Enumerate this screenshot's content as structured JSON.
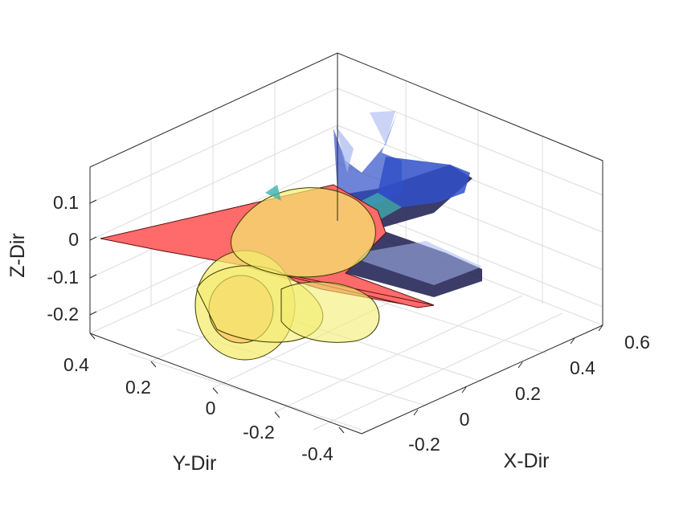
{
  "chart_data": {
    "type": "3d-surface",
    "title": "",
    "xlabel": "X-Dir",
    "ylabel": "Y-Dir",
    "zlabel": "Z-Dir",
    "xticks": [
      "-0.2",
      "0",
      "0.2",
      "0.4",
      "0.6"
    ],
    "yticks": [
      "0.4",
      "0.2",
      "0",
      "-0.2",
      "-0.4"
    ],
    "zticks": [
      "0.1",
      "0",
      "-0.1",
      "-0.2"
    ],
    "grid": true,
    "box": true,
    "colors": {
      "wing_edge": "#ff6a6a",
      "wake_dark": "#1a1a4e",
      "wake_blue": "#3050c8",
      "wake_light": "#a8b8f0",
      "rotor": "#f4ec70",
      "rotor_edge": "#3a3a00",
      "hub_teal": "#40b0b0"
    },
    "surfaces": [
      {
        "name": "wing",
        "color_key": "wing_edge"
      },
      {
        "name": "wake",
        "color_key": "wake_blue"
      },
      {
        "name": "rotor-disc",
        "color_key": "rotor"
      }
    ]
  }
}
